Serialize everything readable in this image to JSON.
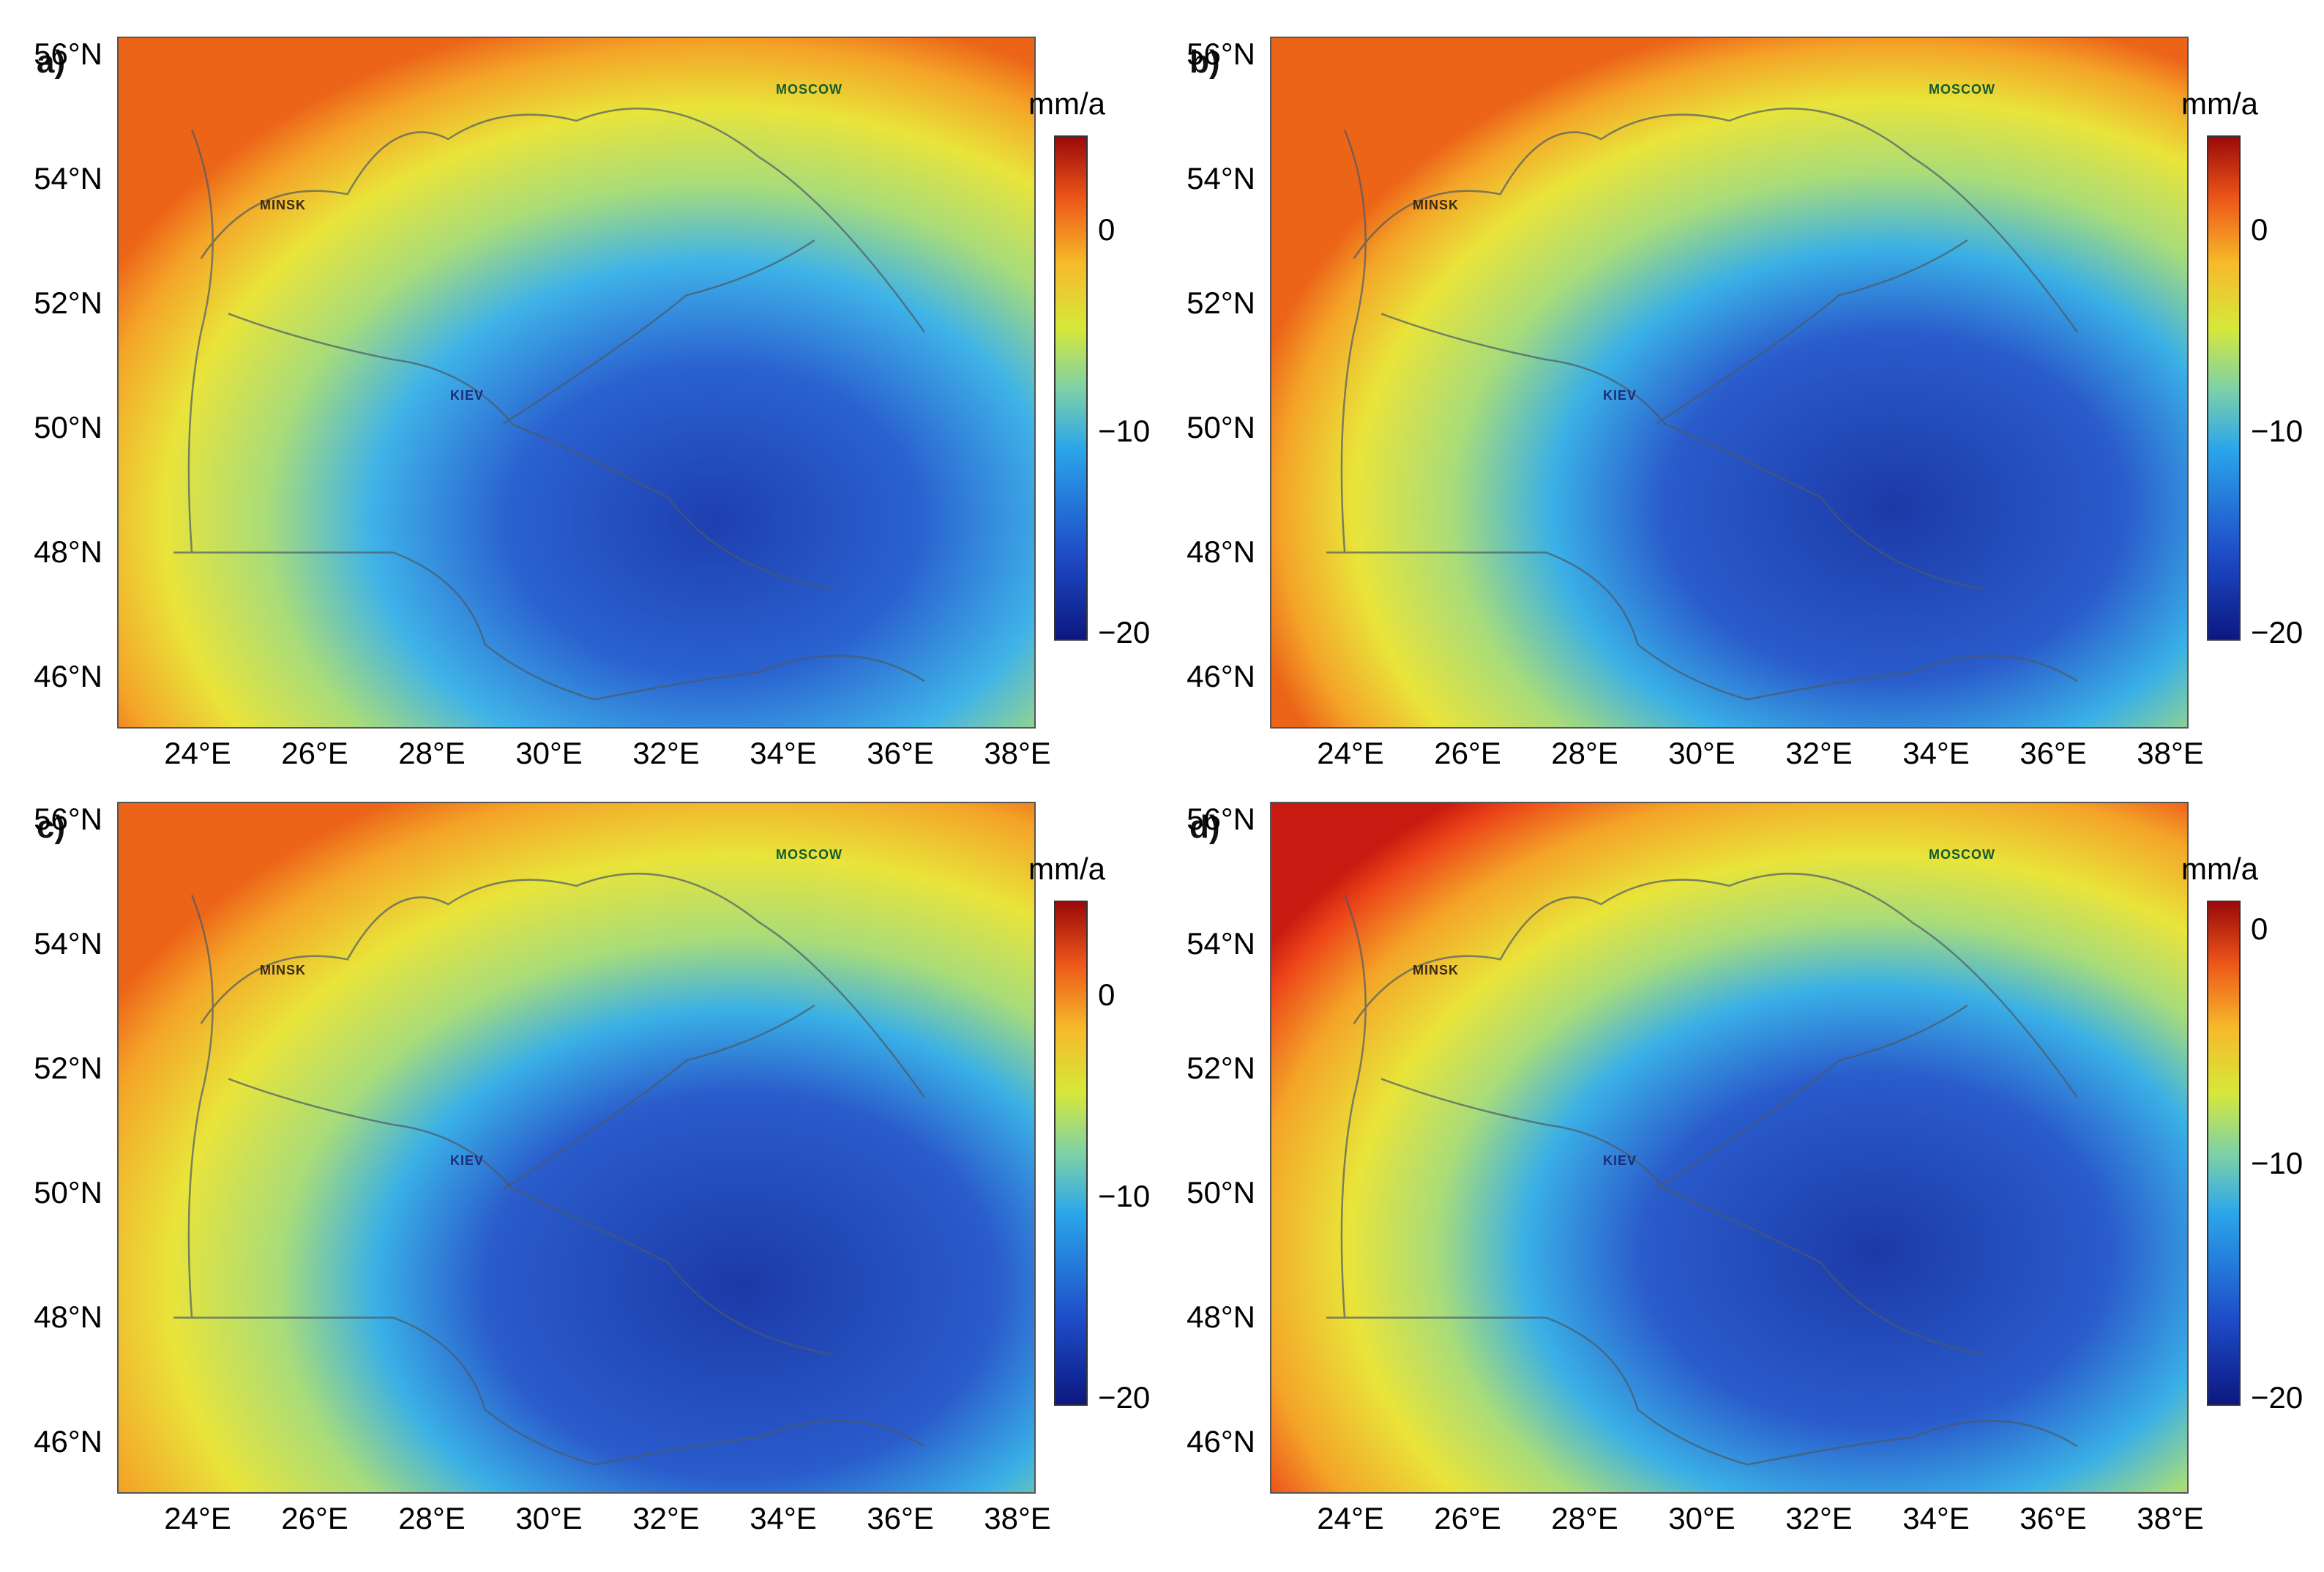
{
  "colors": {
    "map_gradient": [
      "#9a0a0a",
      "#ec5418",
      "#f7b92a",
      "#d6e83a",
      "#7fd1a6",
      "#2ba6ea",
      "#1e4cc8",
      "#0c1880"
    ],
    "border_line": "#4a5a66",
    "frame": "#555555"
  },
  "axes": {
    "lat_labels": [
      "56°N",
      "54°N",
      "52°N",
      "50°N",
      "48°N",
      "46°N"
    ],
    "lon_labels": [
      "24°E",
      "26°E",
      "28°E",
      "30°E",
      "32°E",
      "34°E",
      "36°E",
      "38°E"
    ]
  },
  "cities": {
    "moscow": "MOSCOW",
    "minsk": "MINSK",
    "kyiv": "KIEV"
  },
  "colorbar": {
    "unit": "mm/a",
    "ticks_abc": [
      "0",
      "−10",
      "−20"
    ],
    "ticks_d": [
      "0",
      "−10",
      "−20"
    ]
  },
  "panels": [
    {
      "label": "a)"
    },
    {
      "label": "b)"
    },
    {
      "label": "c)"
    },
    {
      "label": "d)"
    }
  ]
}
